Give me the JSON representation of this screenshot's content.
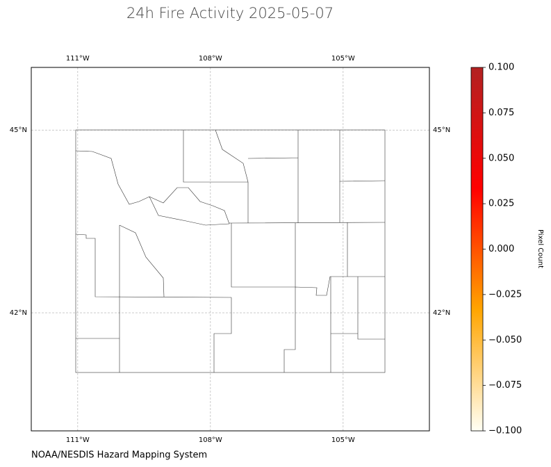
{
  "chart_data": {
    "type": "map",
    "title": "24h Fire Activity 2025-05-07",
    "source": "NOAA/NESDIS Hazard Mapping System",
    "xlim": [
      -112.05,
      -103.05
    ],
    "ylim": [
      40.06,
      46.03
    ],
    "xticks": [
      {
        "value": -111,
        "label": "111°W"
      },
      {
        "value": -108,
        "label": "108°W"
      },
      {
        "value": -105,
        "label": "105°W"
      }
    ],
    "yticks": [
      {
        "value": 42,
        "label": "42°N"
      },
      {
        "value": 45,
        "label": "45°N"
      }
    ],
    "grid": true,
    "colorbar": {
      "label": "Pixel Count",
      "lim": [
        -0.1,
        0.1
      ],
      "colors": [
        "#fffff5",
        "#ffa500",
        "#ff0000",
        "#b22222"
      ],
      "ticks": [
        {
          "value": -0.1,
          "label": "−0.100"
        },
        {
          "value": -0.075,
          "label": "−0.075"
        },
        {
          "value": -0.05,
          "label": "−0.050"
        },
        {
          "value": -0.025,
          "label": "−0.025"
        },
        {
          "value": 0,
          "label": "0.000"
        },
        {
          "value": 0.025,
          "label": "0.025"
        },
        {
          "value": 0.05,
          "label": "0.050"
        },
        {
          "value": 0.075,
          "label": "0.075"
        },
        {
          "value": 0.1,
          "label": "0.100"
        }
      ]
    }
  }
}
